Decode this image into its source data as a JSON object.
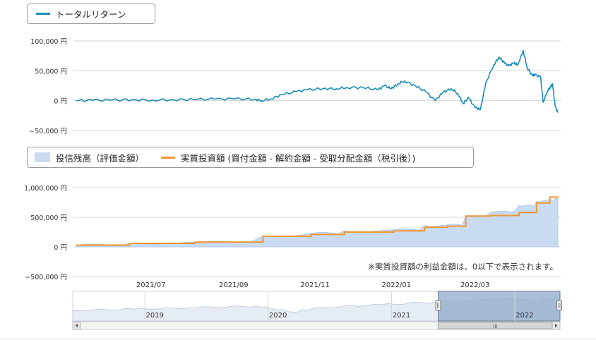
{
  "colors": {
    "return_line": "#1c8db8",
    "balance_area": "#c9dbf2",
    "balance_edge": "#a9c5ea",
    "invested_line": "#f29630",
    "grid": "#d4d4d4",
    "navigator_fill": "#8fa9cb",
    "navigator_mask": "#c7d3e3"
  },
  "top_legend": {
    "label": "トータルリターン"
  },
  "bottom_legend": {
    "balance_label": "投信残高（評価金額）",
    "invested_label": "実質投資額 (買付金額 - 解約金額 - 受取分配金額（税引後）)"
  },
  "note": "※実質投資額の利益金額は、0以下で表示されます。",
  "chart_data": [
    {
      "type": "line",
      "ylim": [
        -50000,
        100000
      ],
      "y_ticks": [
        {
          "value": 100000,
          "label": "100,000 円"
        },
        {
          "value": 50000,
          "label": "50,000 円"
        },
        {
          "value": 0,
          "label": "0 円"
        },
        {
          "value": -50000,
          "label": "−50,000 円"
        }
      ],
      "series": [
        {
          "name": "トータルリターン",
          "x": [
            "2021-05-19",
            "2021-05-31",
            "2021-06-15",
            "2021-06-30",
            "2021-07-15",
            "2021-07-31",
            "2021-08-15",
            "2021-08-31",
            "2021-09-15",
            "2021-09-30",
            "2021-10-05",
            "2021-10-12",
            "2021-10-20",
            "2021-10-31",
            "2021-11-08",
            "2021-11-20",
            "2021-11-30",
            "2021-12-08",
            "2021-12-20",
            "2021-12-31",
            "2022-01-05",
            "2022-01-10",
            "2022-01-15",
            "2022-01-20",
            "2022-01-28",
            "2022-02-05",
            "2022-02-12",
            "2022-02-18",
            "2022-02-24",
            "2022-03-01",
            "2022-03-05",
            "2022-03-09",
            "2022-03-14",
            "2022-03-18",
            "2022-03-22",
            "2022-03-28",
            "2022-04-01",
            "2022-04-05",
            "2022-04-08",
            "2022-04-12",
            "2022-04-15",
            "2022-04-19",
            "2022-04-22",
            "2022-04-26",
            "2022-04-28",
            "2022-05-02",
            "2022-05-04",
            "2022-05-07",
            "2022-05-09",
            "2022-05-11",
            "2022-05-13",
            "2022-05-15"
          ],
          "values": [
            0,
            500,
            1000,
            1500,
            1000,
            1500,
            2000,
            2500,
            3000,
            2000,
            0,
            3000,
            10000,
            15000,
            18000,
            20000,
            20000,
            22000,
            22000,
            18000,
            25000,
            20000,
            28000,
            33000,
            25000,
            15000,
            0,
            14000,
            20000,
            12000,
            -5000,
            5000,
            -12000,
            -15000,
            30000,
            60000,
            73000,
            63000,
            58000,
            63000,
            60000,
            84000,
            55000,
            42000,
            43000,
            40000,
            -3000,
            15000,
            22000,
            28000,
            -10000,
            -20000
          ]
        }
      ]
    },
    {
      "type": "area",
      "ylim": [
        -500000,
        1000000
      ],
      "y_ticks": [
        {
          "value": 1000000,
          "label": "1,000,000 円"
        },
        {
          "value": 500000,
          "label": "500,000 円"
        },
        {
          "value": 0,
          "label": "0 円"
        },
        {
          "value": -500000,
          "label": "−500,000 円"
        }
      ],
      "x_ticks": [
        "2021/07",
        "2021/09",
        "2021/11",
        "2022/01",
        "2022/03"
      ],
      "series": [
        {
          "name": "投信残高（評価金額）",
          "x": [
            "2021-05-19",
            "2021-06-28",
            "2021-08-16",
            "2021-10-06",
            "2021-11-11",
            "2021-12-06",
            "2022-01-12",
            "2022-02-04",
            "2022-02-21",
            "2022-03-07",
            "2022-03-26",
            "2022-04-16",
            "2022-04-21",
            "2022-04-29",
            "2022-05-04",
            "2022-05-13",
            "2022-05-15"
          ],
          "values": [
            30000,
            60000,
            80000,
            190000,
            230000,
            270000,
            290000,
            360000,
            370000,
            520000,
            590000,
            700000,
            690000,
            770000,
            780000,
            820000,
            820000
          ]
        },
        {
          "name": "実質投資額 (買付金額 - 解約金額 - 受取分配金額（税引後）)",
          "x": [
            "2021-05-19",
            "2021-06-28",
            "2021-08-16",
            "2021-10-06",
            "2021-11-11",
            "2021-12-06",
            "2022-01-12",
            "2022-02-04",
            "2022-02-21",
            "2022-03-07",
            "2022-03-26",
            "2022-04-16",
            "2022-04-29",
            "2022-05-04",
            "2022-05-09",
            "2022-05-15"
          ],
          "values": [
            30000,
            60000,
            80000,
            180000,
            210000,
            250000,
            270000,
            330000,
            350000,
            520000,
            530000,
            580000,
            740000,
            740000,
            840000,
            830000
          ]
        }
      ]
    },
    {
      "type": "area",
      "role": "navigator",
      "x_ticks": [
        "2019",
        "2020",
        "2021",
        "2022"
      ],
      "x_range": [
        "2018-06-01",
        "2022-05-15"
      ],
      "selected_range": [
        "2021-05-19",
        "2022-05-15"
      ],
      "scrollbar_label": "III",
      "x": [
        "2018-06-01",
        "2018-12-01",
        "2019-06-01",
        "2019-12-01",
        "2020-03-15",
        "2020-06-01",
        "2020-12-01",
        "2021-06-01",
        "2021-12-01",
        "2022-03-01",
        "2022-05-15"
      ],
      "values": [
        0.35,
        0.4,
        0.45,
        0.5,
        0.3,
        0.45,
        0.55,
        0.65,
        0.75,
        0.7,
        0.75
      ]
    }
  ]
}
